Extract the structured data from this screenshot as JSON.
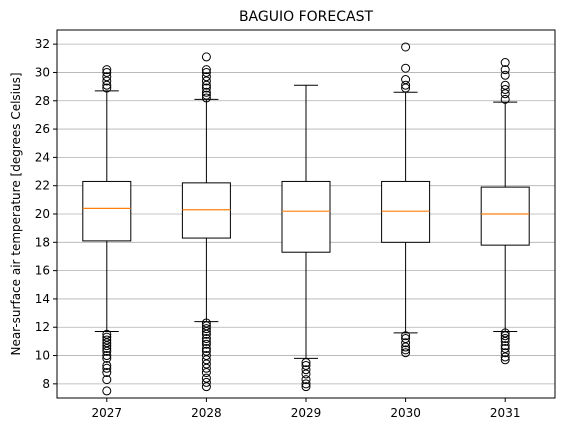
{
  "chart_data": {
    "type": "box",
    "title": "BAGUIO FORECAST",
    "xlabel": "",
    "ylabel": "Near-surface air temperature [degrees Celsius]",
    "ylim": [
      7.0,
      33.0
    ],
    "yticks": [
      8,
      10,
      12,
      14,
      16,
      18,
      20,
      22,
      24,
      26,
      28,
      30,
      32
    ],
    "grid": "horizontal",
    "colors": {
      "median": "#ff7f0e",
      "box": "#000000",
      "grid": "#b0b0b0"
    },
    "categories": [
      "2027",
      "2028",
      "2029",
      "2030",
      "2031"
    ],
    "boxes": [
      {
        "label": "2027",
        "whisker_low": 11.7,
        "q1": 18.1,
        "median": 20.4,
        "q3": 22.3,
        "whisker_high": 28.7,
        "outliers": [
          28.9,
          29.1,
          29.4,
          29.7,
          30.0,
          30.2,
          11.5,
          11.3,
          11.1,
          10.9,
          10.7,
          10.5,
          10.3,
          10.0,
          9.8,
          9.3,
          9.1,
          8.8,
          8.3,
          7.5
        ]
      },
      {
        "label": "2028",
        "whisker_low": 12.4,
        "q1": 18.3,
        "median": 20.3,
        "q3": 22.2,
        "whisker_high": 28.1,
        "outliers": [
          28.2,
          28.4,
          28.6,
          28.9,
          29.1,
          29.4,
          29.7,
          30.0,
          30.2,
          31.1,
          12.3,
          12.1,
          11.9,
          11.7,
          11.5,
          11.2,
          11.0,
          10.8,
          10.5,
          10.3,
          10.0,
          9.7,
          9.4,
          9.1,
          8.8,
          8.4,
          8.1,
          7.8
        ]
      },
      {
        "label": "2029",
        "whisker_low": 9.8,
        "q1": 17.3,
        "median": 20.2,
        "q3": 22.3,
        "whisker_high": 29.1,
        "outliers": [
          9.5,
          9.3,
          9.0,
          8.7,
          8.3,
          8.0,
          7.8
        ]
      },
      {
        "label": "2030",
        "whisker_low": 11.6,
        "q1": 18.0,
        "median": 20.2,
        "q3": 22.3,
        "whisker_high": 28.6,
        "outliers": [
          28.9,
          29.1,
          29.5,
          30.3,
          31.8,
          11.4,
          11.2,
          10.9,
          10.6,
          10.4,
          10.2
        ]
      },
      {
        "label": "2031",
        "whisker_low": 11.7,
        "q1": 17.8,
        "median": 20.0,
        "q3": 21.9,
        "whisker_high": 27.9,
        "outliers": [
          28.1,
          28.5,
          28.8,
          29.1,
          29.8,
          30.2,
          30.7,
          11.6,
          11.4,
          11.2,
          11.0,
          10.7,
          10.5,
          10.2,
          9.9,
          9.7
        ]
      }
    ]
  }
}
